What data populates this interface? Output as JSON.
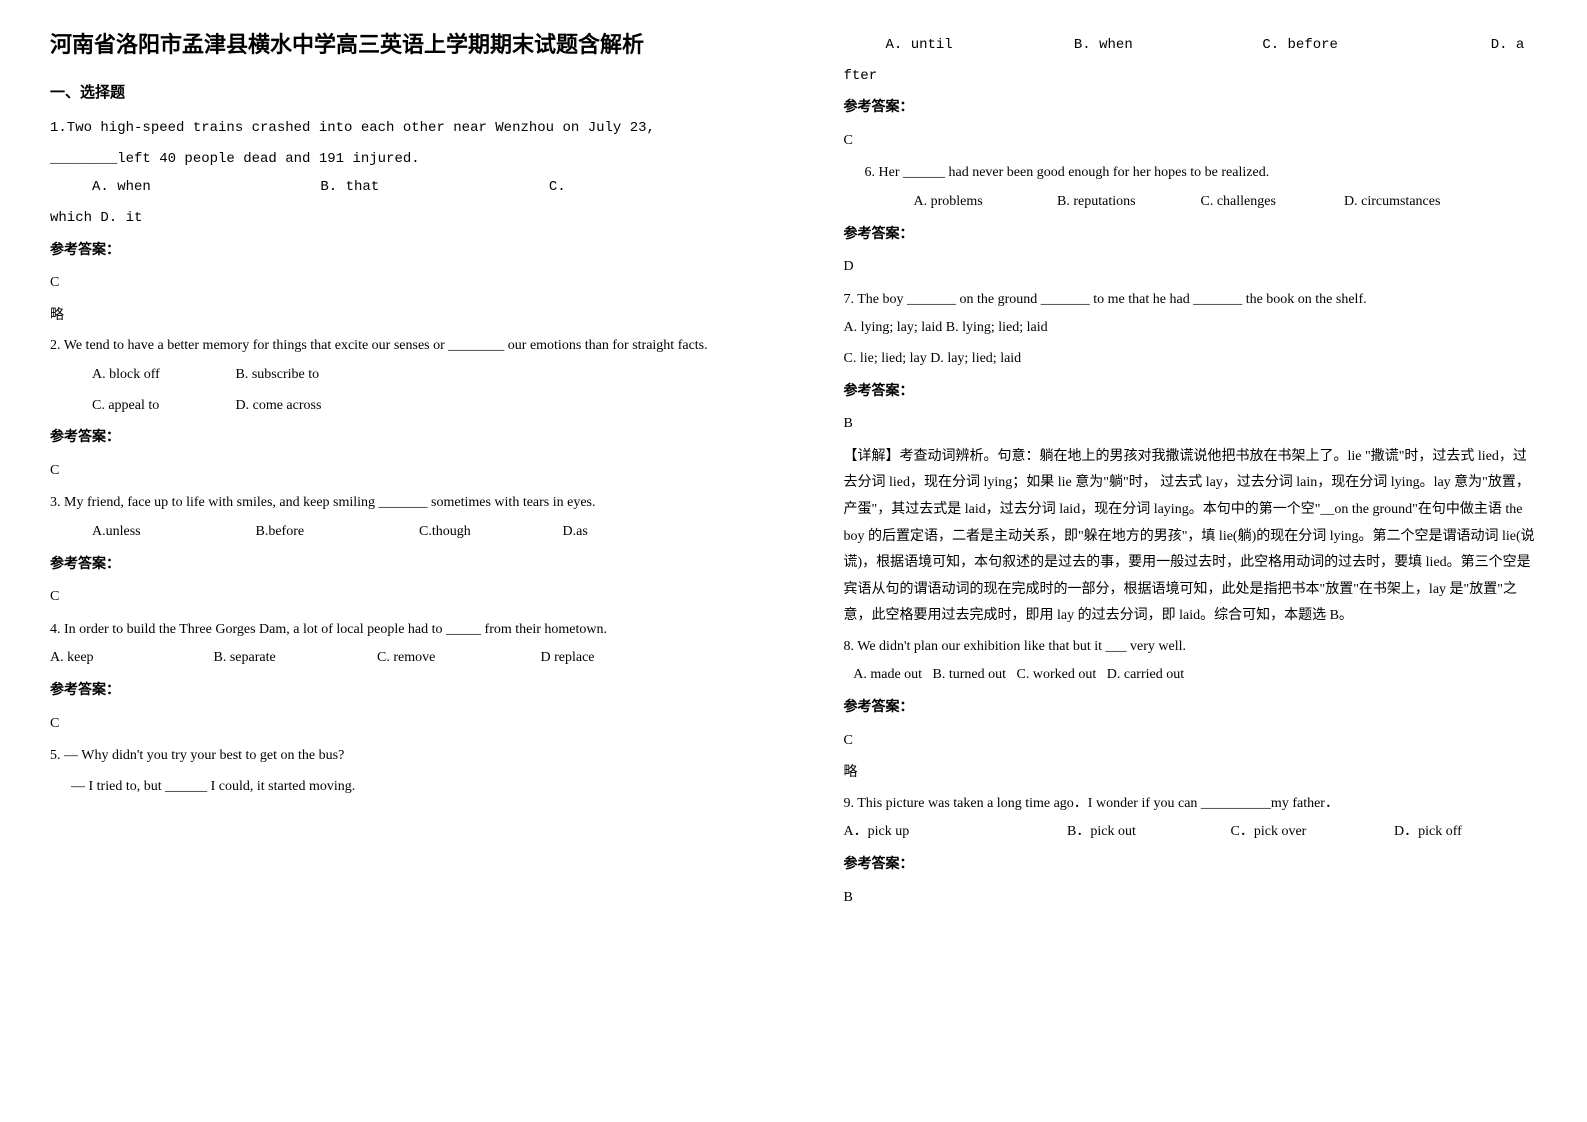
{
  "title": "河南省洛阳市孟津县横水中学高三英语上学期期末试题含解析",
  "section1": "一、选择题",
  "answer_label": "参考答案：",
  "略": "略",
  "q1": {
    "line1": "1.Two high-speed trains crashed into each other near Wenzhou on July 23,",
    "line2": "________left 40 people dead and 191 injured.",
    "optA": "A. when",
    "optB": "B. that",
    "optC": "C.",
    "line3": "which                D. it",
    "answer": "C"
  },
  "q2": {
    "text": "2. We tend to have a better memory for things that excite our senses or ________ our emotions than for straight facts.",
    "optA": "A. block off",
    "optB": "B. subscribe to",
    "optC": "C. appeal to",
    "optD": "D. come across",
    "answer": "C"
  },
  "q3": {
    "text": "3.  My friend, face up to life with smiles, and keep smiling _______ sometimes with tears in eyes.",
    "optA": "A.unless",
    "optB": "B.before",
    "optC": "C.though",
    "optD": "D.as",
    "answer": "C"
  },
  "q4": {
    "text": "4. In order to build the Three Gorges Dam, a lot of local people had to _____ from their hometown.",
    "optA": "A. keep",
    "optB": "B. separate",
    "optC": "C. remove",
    "optD": "D replace",
    "answer": "C"
  },
  "q5": {
    "line1": "5. — Why didn't you try your best to get on the bus?",
    "line2": "— I tried to, but ______ I could, it started moving.",
    "optA": "A. until",
    "optB": "B. when",
    "optC": "C. before",
    "optD": "D. a",
    "optD2": "fter",
    "answer": "C"
  },
  "q6": {
    "text": "6. Her ______ had never been good enough for her hopes to be realized.",
    "optA": "A. problems",
    "optB": "B. reputations",
    "optC": "C. challenges",
    "optD": "D. circumstances",
    "answer": "D"
  },
  "q7": {
    "text": "7. The boy _______ on the ground _______ to me that he had _______ the book on the shelf.",
    "optsL1": "A. lying; lay; laid        B. lying; lied; laid",
    "optsL2": "C. lie; lied; lay    D. lay; lied; laid",
    "answer": "B",
    "explain": "【详解】考查动词辨析。句意：躺在地上的男孩对我撒谎说他把书放在书架上了。lie \"撒谎\"时，过去式 lied，过去分词 lied，现在分词 lying；如果 lie 意为\"躺\"时， 过去式 lay，过去分词 lain，现在分词 lying。lay 意为\"放置，产蛋\"，其过去式是 laid，过去分词 laid，现在分词 laying。本句中的第一个空\"__on the ground\"在句中做主语 the boy 的后置定语，二者是主动关系，即\"躲在地方的男孩\"，填 lie(躺)的现在分词 lying。第二个空是谓语动词 lie(说谎)，根据语境可知，本句叙述的是过去的事，要用一般过去时，此空格用动词的过去时，要填 lied。第三个空是宾语从句的谓语动词的现在完成时的一部分，根据语境可知，此处是指把书本\"放置\"在书架上，lay 是\"放置\"之意，此空格要用过去完成时，即用 lay 的过去分词，即 laid。综合可知，本题选 B。"
  },
  "q8": {
    "text": "8. We didn't plan our exhibition like that but it ___ very well.",
    "opts": "   A. made out   B. turned out   C. worked out   D. carried out",
    "answer": "C"
  },
  "q9": {
    "text": "9. This picture was taken a long time ago．I wonder if you can __________my father．",
    "optA": "A．pick up",
    "optB": "B．pick out",
    "optC": "C．pick over",
    "optD": "D．pick off",
    "answer": "B"
  }
}
